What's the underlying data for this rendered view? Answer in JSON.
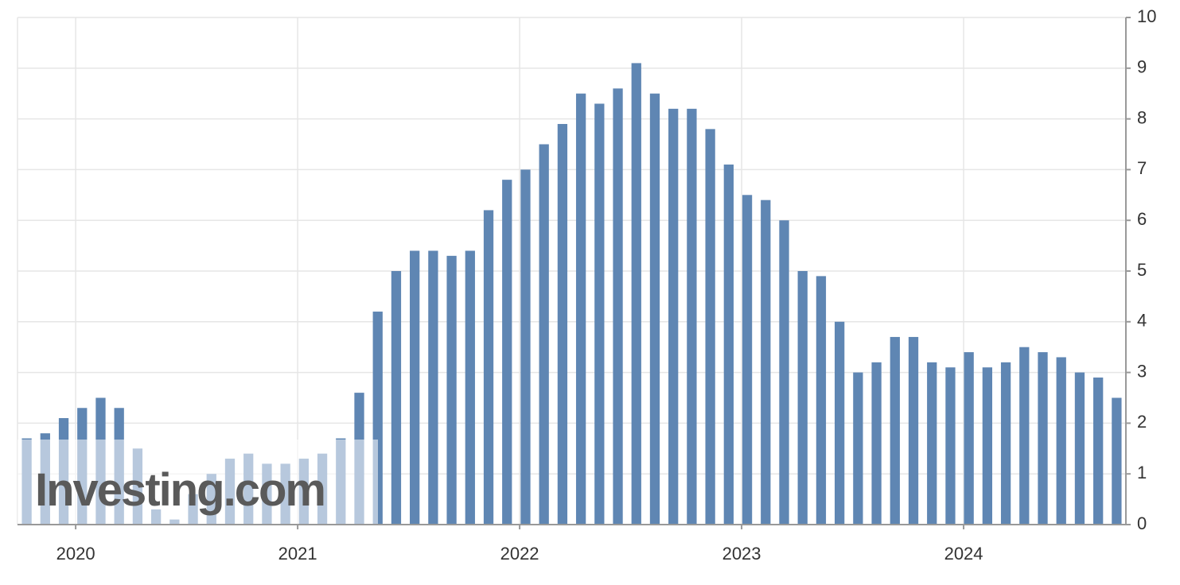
{
  "chart_data": {
    "type": "bar",
    "watermark": "Investing.com",
    "color": "#5f86b3",
    "categories": [
      null,
      null,
      null,
      null,
      null,
      null,
      null,
      null,
      null,
      null,
      null,
      null,
      null,
      null,
      null,
      null,
      null,
      null,
      null,
      null,
      null,
      null,
      null,
      null,
      null,
      null,
      null,
      null,
      null,
      null,
      null,
      null,
      null,
      null,
      null,
      null,
      null,
      null,
      null,
      null,
      null,
      null,
      null,
      null,
      null,
      null,
      null,
      null,
      null,
      null,
      null,
      null,
      null,
      null,
      null,
      null,
      null,
      null,
      null,
      null
    ],
    "values": [
      1.7,
      1.8,
      2.1,
      2.3,
      2.5,
      2.3,
      1.5,
      0.3,
      0.1,
      0.6,
      1.0,
      1.3,
      1.4,
      1.2,
      1.2,
      1.3,
      1.4,
      1.7,
      2.6,
      4.2,
      5.0,
      5.4,
      5.4,
      5.3,
      5.4,
      6.2,
      6.8,
      7.0,
      7.5,
      7.9,
      8.5,
      8.3,
      8.6,
      9.1,
      8.5,
      8.2,
      8.2,
      7.8,
      7.1,
      6.5,
      6.4,
      6.0,
      5.0,
      4.9,
      4.0,
      3.0,
      3.2,
      3.7,
      3.7,
      3.2,
      3.1,
      3.4,
      3.1,
      3.2,
      3.5,
      3.4,
      3.3,
      3.0,
      2.9,
      2.5
    ],
    "xlim": [
      2019.738,
      2024.731
    ],
    "xticks": [
      2020,
      2021,
      2022,
      2023,
      2024
    ],
    "ylim": [
      0,
      10
    ],
    "yticks": [
      0,
      1,
      2,
      3,
      4,
      5,
      6,
      7,
      8,
      9,
      10
    ],
    "grid": true
  }
}
